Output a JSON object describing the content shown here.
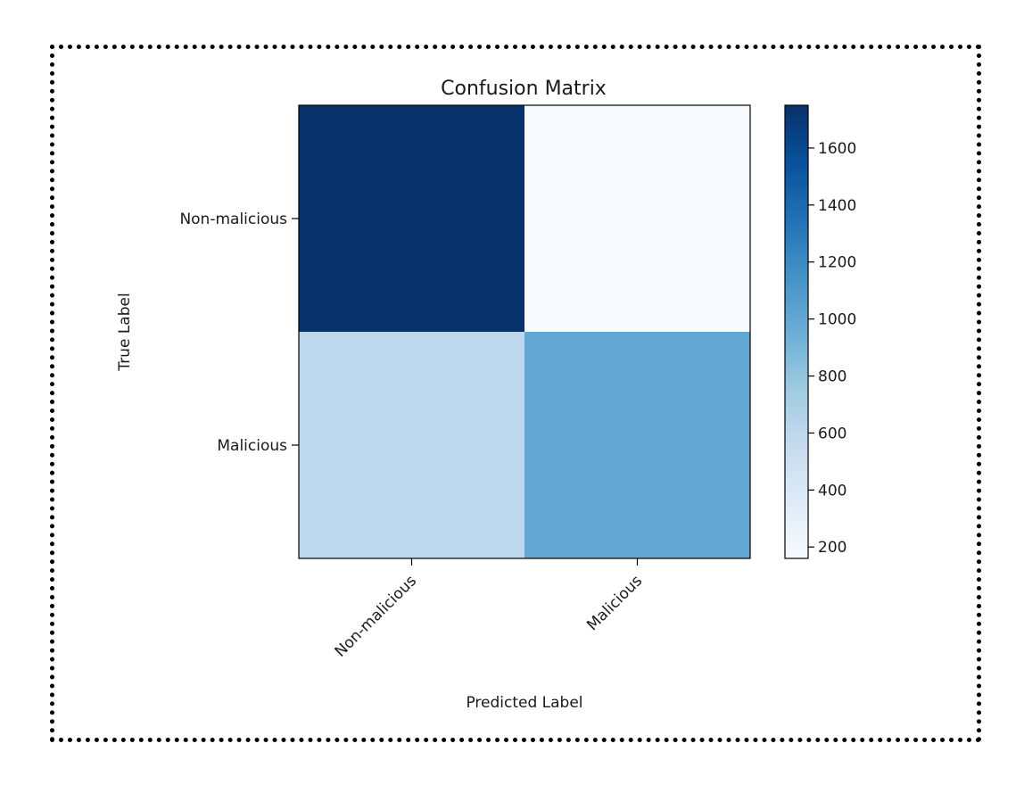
{
  "chart_data": {
    "type": "heatmap",
    "title": "Confusion Matrix",
    "xlabel": "Predicted Label",
    "ylabel": "True Label",
    "x_categories": [
      "Non-malicious",
      "Malicious"
    ],
    "y_categories": [
      "Non-malicious",
      "Malicious"
    ],
    "matrix": [
      [
        1750,
        160
      ],
      [
        600,
        1000
      ]
    ],
    "colormap": "Blues",
    "colorbar": {
      "range": [
        160,
        1750
      ],
      "ticks": [
        200,
        400,
        600,
        800,
        1000,
        1200,
        1400,
        1600
      ]
    },
    "colors": [
      "#f7fbff",
      "#deebf7",
      "#c6dbef",
      "#9ecae1",
      "#6baed6",
      "#4292c6",
      "#2171b5",
      "#08519c",
      "#08306b"
    ]
  }
}
